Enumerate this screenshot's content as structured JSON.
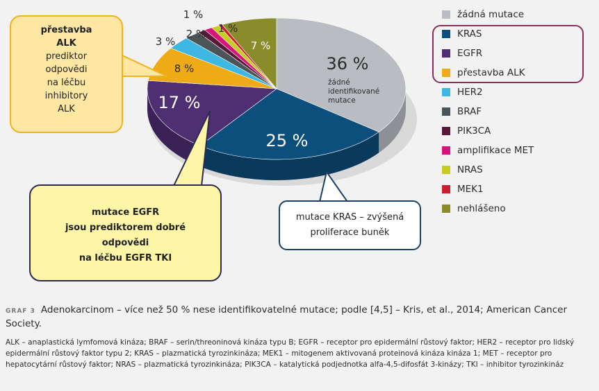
{
  "chart_data": {
    "type": "pie",
    "title": "",
    "slices": [
      {
        "label": "žádná mutace",
        "value": 36,
        "display": "36 %",
        "color": "#b9bcc0",
        "side": "#8d9196"
      },
      {
        "label": "KRAS",
        "value": 25,
        "display": "25 %",
        "color": "#0d4f7c",
        "side": "#093a5c"
      },
      {
        "label": "EGFR",
        "value": 17,
        "display": "17 %",
        "color": "#4e2f72",
        "side": "#3a2256"
      },
      {
        "label": "přestavba ALK",
        "value": 8,
        "display": "8 %",
        "color": "#eeaa17",
        "side": "#b98311"
      },
      {
        "label": "HER2",
        "value": 3,
        "display": "3 %",
        "color": "#3fb7e3",
        "side": "#2e8db0"
      },
      {
        "label": "BRAF",
        "value": 2,
        "display": "2 %",
        "color": "#4d5457",
        "side": "#363b3d"
      },
      {
        "label": "PIK3CA",
        "value": 1,
        "display": "",
        "color": "#5a1838",
        "side": "#40102a"
      },
      {
        "label": "amplifikace MET",
        "value": 1,
        "display": "1 %",
        "color": "#d8137a",
        "side": "#a00e5b"
      },
      {
        "label": "NRAS",
        "value": 1,
        "display": "1 %",
        "color": "#c4cd20",
        "side": "#939a18"
      },
      {
        "label": "MEK1",
        "value": 0.5,
        "display": "",
        "color": "#c8202f",
        "side": "#961823"
      },
      {
        "label": "nehlášeno",
        "value": 7,
        "display": "7 %",
        "color": "#8a8b2a",
        "side": "#66671f"
      }
    ],
    "inner_note": "žádné identifikované mutace",
    "legend_position": "right"
  },
  "legend": [
    {
      "label": "žádná mutace",
      "color": "#b9bcc0"
    },
    {
      "label": "KRAS",
      "color": "#0d4f7c"
    },
    {
      "label": "EGFR",
      "color": "#4e2f72"
    },
    {
      "label": "přestavba ALK",
      "color": "#eeaa17"
    },
    {
      "label": "HER2",
      "color": "#3fb7e3"
    },
    {
      "label": "BRAF",
      "color": "#4d5457"
    },
    {
      "label": "PIK3CA",
      "color": "#5a1838"
    },
    {
      "label": "amplifikace MET",
      "color": "#d8137a"
    },
    {
      "label": "NRAS",
      "color": "#c4cd20"
    },
    {
      "label": "MEK1",
      "color": "#c8202f"
    },
    {
      "label": "nehlášeno",
      "color": "#8a8b2a"
    }
  ],
  "callouts": {
    "alk_title_1": "přestavba",
    "alk_title_2": "ALK",
    "alk_l1": "prediktor",
    "alk_l2": "odpovědi",
    "alk_l3": "na léčbu",
    "alk_l4": "inhibitory",
    "alk_l5": "ALK",
    "egfr_l1": "mutace EGFR",
    "egfr_l2": "jsou prediktorem dobré",
    "egfr_l3": "odpovědi",
    "egfr_l4": "na léčbu EGFR TKI",
    "kras_l1": "mutace KRAS – zvýšená",
    "kras_l2": "proliferace buněk"
  },
  "caption": {
    "graf": "GRAF 3",
    "text": "Adenokarcinom – více než 50 % nese identifikovatelné mutace; podle [4,5] – Kris, et al., 2014; American Cancer Society."
  },
  "footnote": "ALK – anaplastická lymfomová kináza; BRAF – serin/threoninová kináza typu B; EGFR – receptor pro epidermální růstový faktor; HER2 – receptor pro lidský epidermální růstový faktor typu 2; KRAS – plazmatická tyrozinkináza; MEK1 – mitogenem aktivovaná proteinová kináza kináza 1; MET – receptor pro hepatocytární růstový faktor; NRAS – plazmatická tyrozinkináza; PIK3CA – katalytická podjednotka alfa-4,5-difosfát 3-kinázy; TKI – inhibitor tyrozinkináz"
}
